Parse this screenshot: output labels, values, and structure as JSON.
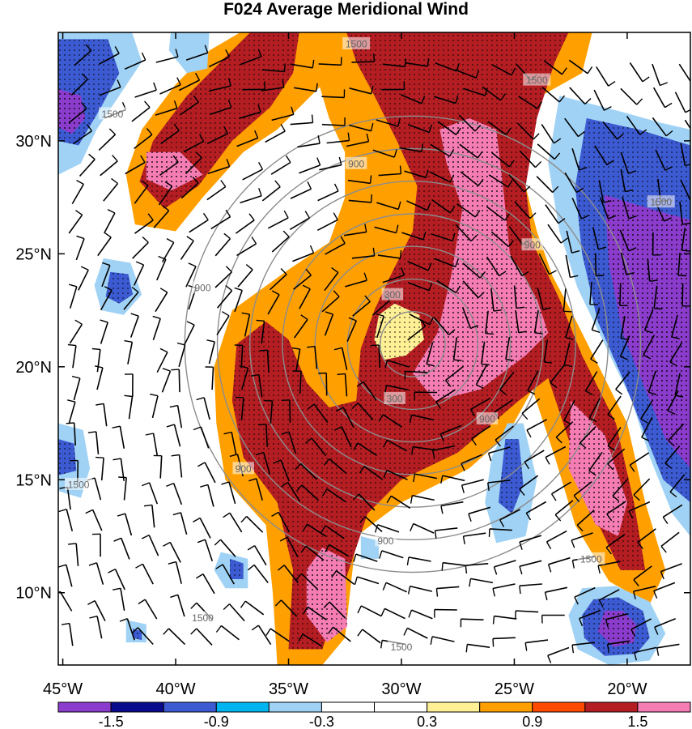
{
  "title": "F024 Average Meridional Wind",
  "lat_ticks": [
    {
      "value": 30,
      "label": "30°N"
    },
    {
      "value": 25,
      "label": "25°N"
    },
    {
      "value": 20,
      "label": "20°N"
    },
    {
      "value": 15,
      "label": "15°N"
    },
    {
      "value": 10,
      "label": "10°N"
    }
  ],
  "lon_ticks": [
    {
      "value": -45,
      "label": "45°W"
    },
    {
      "value": -40,
      "label": "40°W"
    },
    {
      "value": -35,
      "label": "35°W"
    },
    {
      "value": -30,
      "label": "30°W"
    },
    {
      "value": -25,
      "label": "25°W"
    },
    {
      "value": -20,
      "label": "20°W"
    }
  ],
  "extent": {
    "lon_min": -45.2,
    "lon_max": -17.2,
    "lat_min": 6.8,
    "lat_max": 34.8
  },
  "colorbar": {
    "colors": [
      "#8c3ccc",
      "#0a0a8c",
      "#3c5ad2",
      "#00b4f0",
      "#a0d2f5",
      "#ffffff",
      "#ffffff",
      "#fff096",
      "#ffa000",
      "#ff4b00",
      "#b41e23",
      "#f57db4"
    ],
    "labels": [
      "-1.5",
      "-0.9",
      "-0.3",
      "0.3",
      "0.9",
      "1.5"
    ]
  },
  "range_rings": {
    "center": {
      "lon": -29.5,
      "lat": 21.0
    },
    "ring_labels": [
      "300",
      "900",
      "1500"
    ]
  },
  "contour_labels": [
    {
      "text": "1500",
      "lon": -32.0,
      "lat": 34.3
    },
    {
      "text": "1500",
      "lon": -24.0,
      "lat": 32.7
    },
    {
      "text": "1500",
      "lon": -42.8,
      "lat": 31.2
    },
    {
      "text": "900",
      "lon": -32.0,
      "lat": 29.0
    },
    {
      "text": "900",
      "lon": -24.2,
      "lat": 25.4
    },
    {
      "text": "1500",
      "lon": -18.5,
      "lat": 27.3
    },
    {
      "text": "900",
      "lon": -38.8,
      "lat": 23.5
    },
    {
      "text": "300",
      "lon": -30.4,
      "lat": 23.2
    },
    {
      "text": "300",
      "lon": -30.3,
      "lat": 18.6
    },
    {
      "text": "900",
      "lon": -37.0,
      "lat": 15.5
    },
    {
      "text": "900",
      "lon": -26.2,
      "lat": 17.7
    },
    {
      "text": "1500",
      "lon": -44.3,
      "lat": 14.8
    },
    {
      "text": "900",
      "lon": -30.7,
      "lat": 12.3
    },
    {
      "text": "1500",
      "lon": -21.6,
      "lat": 11.5
    },
    {
      "text": "1500",
      "lon": -38.8,
      "lat": 8.9
    },
    {
      "text": "1500",
      "lon": -30.0,
      "lat": 7.6
    }
  ],
  "meridional_wind_regions": [
    {
      "value": 0.6,
      "points": [
        [
          -36.8,
          35
        ],
        [
          -34,
          35
        ],
        [
          -33.5,
          32.5
        ],
        [
          -34.5,
          31.5
        ],
        [
          -35.5,
          30.5
        ],
        [
          -37,
          29.5
        ],
        [
          -38.8,
          27.5
        ],
        [
          -40,
          26
        ],
        [
          -41.8,
          26.3
        ],
        [
          -42.2,
          28.5
        ],
        [
          -41.5,
          30.5
        ],
        [
          -40,
          32.5
        ],
        [
          -38.5,
          34
        ]
      ]
    },
    {
      "value": 1.2,
      "points": [
        [
          -36.5,
          35
        ],
        [
          -34.5,
          35
        ],
        [
          -34.8,
          33
        ],
        [
          -35.8,
          31.5
        ],
        [
          -37.5,
          30
        ],
        [
          -39,
          28
        ],
        [
          -40.5,
          27
        ],
        [
          -41.6,
          28.2
        ],
        [
          -41,
          30
        ],
        [
          -39.5,
          32
        ],
        [
          -38,
          33.5
        ]
      ]
    },
    {
      "value": 1.6,
      "points": [
        [
          -41.3,
          29.5
        ],
        [
          -39.8,
          29.5
        ],
        [
          -38.8,
          28.5
        ],
        [
          -40.2,
          27.8
        ],
        [
          -41.3,
          28.3
        ]
      ]
    },
    {
      "value": 0.6,
      "points": [
        [
          -34,
          35
        ],
        [
          -21.5,
          35
        ],
        [
          -22,
          33
        ],
        [
          -23.8,
          32
        ],
        [
          -24.3,
          30
        ],
        [
          -24.5,
          28
        ],
        [
          -24,
          26
        ],
        [
          -23.3,
          24
        ],
        [
          -22.5,
          22.5
        ],
        [
          -21.5,
          20.5
        ],
        [
          -20,
          17.5
        ],
        [
          -19.2,
          14
        ],
        [
          -18.3,
          11
        ],
        [
          -19,
          9.5
        ],
        [
          -20.8,
          10.5
        ],
        [
          -22.3,
          13
        ],
        [
          -23.2,
          16
        ],
        [
          -24.2,
          19
        ],
        [
          -25.3,
          17
        ],
        [
          -27,
          15.5
        ],
        [
          -30,
          14
        ],
        [
          -32,
          12.5
        ],
        [
          -32.5,
          8
        ],
        [
          -33.5,
          6.8
        ],
        [
          -35.5,
          6.8
        ],
        [
          -35.7,
          10
        ],
        [
          -36,
          13
        ],
        [
          -37.8,
          15
        ],
        [
          -38.2,
          17.5
        ],
        [
          -38.3,
          20
        ],
        [
          -37.5,
          22.5
        ],
        [
          -35,
          24.3
        ],
        [
          -33.2,
          25.5
        ],
        [
          -32.5,
          27.5
        ],
        [
          -32.5,
          29.5
        ],
        [
          -33.2,
          31
        ],
        [
          -33.8,
          33
        ]
      ]
    },
    {
      "value": 1.2,
      "points": [
        [
          -32.5,
          35
        ],
        [
          -22.5,
          35
        ],
        [
          -23.2,
          33.5
        ],
        [
          -24,
          31
        ],
        [
          -24.5,
          28
        ],
        [
          -24.2,
          25.5
        ],
        [
          -23,
          23
        ],
        [
          -22,
          20.5
        ],
        [
          -20.5,
          17.5
        ],
        [
          -19.7,
          14
        ],
        [
          -19.2,
          11
        ],
        [
          -20.3,
          11
        ],
        [
          -21.5,
          13.5
        ],
        [
          -22.5,
          16.5
        ],
        [
          -23.5,
          19.5
        ],
        [
          -24.8,
          18.5
        ],
        [
          -27.5,
          16.2
        ],
        [
          -30,
          15
        ],
        [
          -31.5,
          13.5
        ],
        [
          -33,
          9
        ],
        [
          -33.5,
          7.5
        ],
        [
          -35,
          7.5
        ],
        [
          -34.8,
          11
        ],
        [
          -35.5,
          14
        ],
        [
          -37,
          16
        ],
        [
          -37.5,
          18.5
        ],
        [
          -37.3,
          21
        ],
        [
          -36,
          22
        ],
        [
          -35,
          21.2
        ],
        [
          -34.2,
          19.3
        ],
        [
          -33.2,
          18.2
        ],
        [
          -32,
          18.5
        ],
        [
          -31.8,
          20.8
        ],
        [
          -31.2,
          22.5
        ],
        [
          -30.5,
          24
        ],
        [
          -29.5,
          26
        ],
        [
          -29.3,
          28
        ],
        [
          -30.2,
          30
        ],
        [
          -31.2,
          32
        ],
        [
          -32,
          33.5
        ]
      ]
    },
    {
      "value": 1.6,
      "points": [
        [
          -28.3,
          30.5
        ],
        [
          -27,
          31
        ],
        [
          -25.8,
          30.5
        ],
        [
          -25.5,
          28
        ],
        [
          -25.2,
          25
        ],
        [
          -24,
          23
        ],
        [
          -23.5,
          21.5
        ],
        [
          -24.5,
          20.5
        ],
        [
          -26.5,
          19
        ],
        [
          -28.5,
          18.5
        ],
        [
          -29.5,
          19.7
        ],
        [
          -28.4,
          21.5
        ],
        [
          -27.8,
          24
        ],
        [
          -27.3,
          27
        ],
        [
          -28,
          29
        ]
      ]
    },
    {
      "value": 1.6,
      "points": [
        [
          -22.5,
          18.5
        ],
        [
          -21,
          17
        ],
        [
          -20,
          14
        ],
        [
          -20.4,
          12.5
        ],
        [
          -21.4,
          13
        ],
        [
          -22.6,
          15.5
        ]
      ]
    },
    {
      "value": 1.6,
      "points": [
        [
          -33.5,
          12
        ],
        [
          -32.5,
          11.5
        ],
        [
          -32.4,
          8.5
        ],
        [
          -33.3,
          7.8
        ],
        [
          -34.2,
          9
        ],
        [
          -34.2,
          11
        ]
      ]
    },
    {
      "value": 0.3,
      "points": [
        [
          -30.3,
          22.8
        ],
        [
          -29.2,
          22.3
        ],
        [
          -29,
          21.2
        ],
        [
          -29.8,
          20.5
        ],
        [
          -30.8,
          20.3
        ],
        [
          -31.2,
          21.2
        ],
        [
          -31,
          22.3
        ]
      ]
    },
    {
      "value": -0.6,
      "points": [
        [
          -45.2,
          35
        ],
        [
          -42,
          35
        ],
        [
          -41.5,
          33.5
        ],
        [
          -42.5,
          32
        ],
        [
          -43.5,
          30.5
        ],
        [
          -44.2,
          29
        ],
        [
          -45.2,
          28.5
        ]
      ]
    },
    {
      "value": -1.2,
      "points": [
        [
          -45.2,
          34.5
        ],
        [
          -43,
          34.5
        ],
        [
          -42.5,
          33
        ],
        [
          -43.3,
          31.5
        ],
        [
          -44.3,
          29.8
        ],
        [
          -45.2,
          30
        ]
      ]
    },
    {
      "value": -1.6,
      "points": [
        [
          -45.2,
          32.3
        ],
        [
          -44.2,
          32
        ],
        [
          -44,
          31
        ],
        [
          -44.6,
          30.3
        ],
        [
          -45.2,
          30.6
        ]
      ]
    },
    {
      "value": -0.6,
      "points": [
        [
          -40.2,
          35
        ],
        [
          -38.5,
          35
        ],
        [
          -38.6,
          33.2
        ],
        [
          -39.5,
          33
        ],
        [
          -40.3,
          34
        ]
      ]
    },
    {
      "value": -0.6,
      "points": [
        [
          -23,
          32
        ],
        [
          -20.3,
          31.3
        ],
        [
          -18.5,
          30.8
        ],
        [
          -17.2,
          30.5
        ],
        [
          -17.2,
          12.5
        ],
        [
          -18,
          13.5
        ],
        [
          -19,
          16
        ],
        [
          -19.8,
          18.5
        ],
        [
          -21,
          21
        ],
        [
          -22.2,
          23.5
        ],
        [
          -23,
          26
        ],
        [
          -23.5,
          29
        ]
      ]
    },
    {
      "value": -1.2,
      "points": [
        [
          -21.8,
          31
        ],
        [
          -19.5,
          30.5
        ],
        [
          -17.2,
          29.8
        ],
        [
          -17.2,
          14
        ],
        [
          -18.4,
          15
        ],
        [
          -19.2,
          17
        ],
        [
          -20.2,
          19.5
        ],
        [
          -21.3,
          22
        ],
        [
          -22,
          25
        ],
        [
          -22.3,
          28
        ]
      ]
    },
    {
      "value": -1.6,
      "points": [
        [
          -21,
          27.6
        ],
        [
          -19,
          27
        ],
        [
          -17.2,
          26.5
        ],
        [
          -17.2,
          15.5
        ],
        [
          -18.3,
          16.8
        ],
        [
          -19.2,
          19
        ],
        [
          -20.2,
          21.5
        ],
        [
          -20.8,
          24.5
        ]
      ]
    },
    {
      "value": -0.6,
      "points": [
        [
          -43.2,
          24.8
        ],
        [
          -42,
          24.6
        ],
        [
          -41.5,
          23.2
        ],
        [
          -42.3,
          22.3
        ],
        [
          -43.3,
          22.5
        ],
        [
          -43.6,
          23.6
        ]
      ]
    },
    {
      "value": -1.2,
      "points": [
        [
          -42.9,
          24.2
        ],
        [
          -42.1,
          24.1
        ],
        [
          -41.9,
          23.2
        ],
        [
          -42.5,
          22.8
        ],
        [
          -43.1,
          23.1
        ]
      ]
    },
    {
      "value": -0.6,
      "points": [
        [
          -45.2,
          17.5
        ],
        [
          -44.1,
          17.2
        ],
        [
          -43.8,
          15.5
        ],
        [
          -44.2,
          14.2
        ],
        [
          -45.2,
          14.5
        ]
      ]
    },
    {
      "value": -1.2,
      "points": [
        [
          -45.2,
          16.8
        ],
        [
          -44.5,
          16.6
        ],
        [
          -44.4,
          15.4
        ],
        [
          -45.2,
          15.2
        ]
      ]
    },
    {
      "value": -0.6,
      "points": [
        [
          -25.3,
          17.5
        ],
        [
          -24.6,
          17.5
        ],
        [
          -24,
          15
        ],
        [
          -24.5,
          12.5
        ],
        [
          -25.8,
          12.2
        ],
        [
          -26.3,
          14
        ],
        [
          -26,
          16
        ]
      ]
    },
    {
      "value": -1.2,
      "points": [
        [
          -25.4,
          16.8
        ],
        [
          -24.8,
          16.8
        ],
        [
          -24.6,
          14.8
        ],
        [
          -25.1,
          13.5
        ],
        [
          -25.7,
          14
        ]
      ]
    },
    {
      "value": -0.6,
      "points": [
        [
          -38,
          11.8
        ],
        [
          -36.8,
          11.5
        ],
        [
          -36.8,
          10.2
        ],
        [
          -37.8,
          10.2
        ],
        [
          -38.3,
          11
        ]
      ]
    },
    {
      "value": -1.2,
      "points": [
        [
          -37.6,
          11.5
        ],
        [
          -37,
          11.3
        ],
        [
          -37,
          10.6
        ],
        [
          -37.6,
          10.6
        ]
      ]
    },
    {
      "value": -0.6,
      "points": [
        [
          -42.2,
          8.8
        ],
        [
          -41.3,
          8.6
        ],
        [
          -41.3,
          7.8
        ],
        [
          -42.2,
          7.8
        ]
      ]
    },
    {
      "value": -1.2,
      "points": [
        [
          -41.9,
          8.4
        ],
        [
          -41.5,
          8.3
        ],
        [
          -41.5,
          7.9
        ],
        [
          -41.9,
          8
        ]
      ]
    },
    {
      "value": -0.6,
      "points": [
        [
          -31.8,
          12.5
        ],
        [
          -31,
          12.3
        ],
        [
          -31,
          11.5
        ],
        [
          -31.8,
          11.5
        ]
      ]
    },
    {
      "value": -0.6,
      "points": [
        [
          -22,
          10.2
        ],
        [
          -20.5,
          10.3
        ],
        [
          -19,
          9.6
        ],
        [
          -18.3,
          8.2
        ],
        [
          -19,
          7
        ],
        [
          -20.8,
          6.8
        ],
        [
          -22.2,
          7.5
        ],
        [
          -22.6,
          9
        ]
      ]
    },
    {
      "value": -1.2,
      "points": [
        [
          -21.5,
          9.7
        ],
        [
          -20.4,
          9.8
        ],
        [
          -19.3,
          9.2
        ],
        [
          -19,
          8
        ],
        [
          -19.6,
          7.3
        ],
        [
          -21,
          7.2
        ],
        [
          -21.9,
          8
        ],
        [
          -22,
          9
        ]
      ]
    },
    {
      "value": -1.6,
      "points": [
        [
          -21,
          9.2
        ],
        [
          -20.2,
          9.2
        ],
        [
          -19.6,
          8.6
        ],
        [
          -19.7,
          7.8
        ],
        [
          -20.6,
          7.6
        ],
        [
          -21.3,
          8.3
        ]
      ]
    }
  ]
}
